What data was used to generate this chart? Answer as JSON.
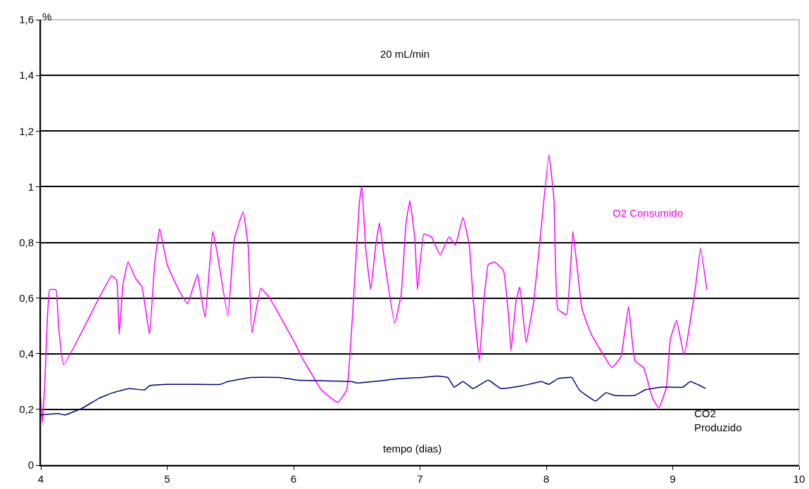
{
  "chart_data": {
    "type": "line",
    "xlabel": "tempo (dias)",
    "ylabel": "%",
    "annotations": [
      "20 mL/min"
    ],
    "xlim": [
      4,
      10
    ],
    "xticks": [
      4,
      5,
      6,
      7,
      8,
      9,
      10
    ],
    "ylim": [
      0,
      1.6
    ],
    "yticks": [
      0,
      {
        "value": 0.2,
        "label": "0,2"
      },
      {
        "value": 0.4,
        "label": "0,4"
      },
      {
        "value": 0.6,
        "label": "0,6"
      },
      {
        "value": 0.8,
        "label": "0,8"
      },
      1,
      {
        "value": 1.2,
        "label": "1,2"
      },
      {
        "value": 1.4,
        "label": "1,4"
      },
      {
        "value": 1.6,
        "label": "1,6"
      }
    ],
    "grid": "y",
    "legend": false,
    "marker": "none",
    "line_style": "solid",
    "series": [
      {
        "name": "O2 Consumido",
        "color": "#ff00ff",
        "x": [
          4.0,
          4.01,
          4.03,
          4.05,
          4.07,
          4.12,
          4.14,
          4.18,
          4.46,
          4.56,
          4.6,
          4.62,
          4.65,
          4.69,
          4.75,
          4.8,
          4.86,
          4.9,
          4.94,
          5.0,
          5.09,
          5.16,
          5.24,
          5.26,
          5.3,
          5.36,
          5.4,
          5.48,
          5.53,
          5.6,
          5.64,
          5.67,
          5.74,
          5.81,
          6.02,
          6.05,
          6.22,
          6.35,
          6.42,
          6.48,
          6.52,
          6.54,
          6.57,
          6.61,
          6.65,
          6.68,
          6.72,
          6.8,
          6.85,
          6.89,
          6.92,
          6.96,
          6.98,
          7.03,
          7.09,
          7.16,
          7.23,
          7.28,
          7.34,
          7.39,
          7.42,
          7.47,
          7.5,
          7.54,
          7.59,
          7.66,
          7.7,
          7.72,
          7.76,
          7.79,
          7.84,
          7.9,
          7.95,
          8.02,
          8.06,
          8.09,
          8.16,
          8.21,
          8.28,
          8.35,
          8.52,
          8.59,
          8.65,
          8.7,
          8.77,
          8.84,
          8.89,
          8.95,
          8.98,
          9.03,
          9.09,
          9.18,
          9.22,
          9.27
        ],
        "values": [
          0.24,
          0.15,
          0.28,
          0.51,
          0.63,
          0.63,
          0.5,
          0.36,
          0.6,
          0.68,
          0.665,
          0.47,
          0.65,
          0.73,
          0.67,
          0.64,
          0.47,
          0.72,
          0.85,
          0.72,
          0.63,
          0.58,
          0.685,
          0.63,
          0.53,
          0.84,
          0.75,
          0.535,
          0.81,
          0.91,
          0.79,
          0.475,
          0.635,
          0.6,
          0.43,
          0.4,
          0.27,
          0.225,
          0.27,
          0.64,
          0.94,
          1.005,
          0.78,
          0.63,
          0.79,
          0.87,
          0.73,
          0.51,
          0.61,
          0.87,
          0.95,
          0.81,
          0.63,
          0.83,
          0.82,
          0.755,
          0.82,
          0.79,
          0.89,
          0.79,
          0.6,
          0.375,
          0.56,
          0.72,
          0.73,
          0.7,
          0.54,
          0.41,
          0.59,
          0.64,
          0.44,
          0.59,
          0.81,
          1.115,
          0.955,
          0.56,
          0.54,
          0.84,
          0.565,
          0.475,
          0.35,
          0.39,
          0.57,
          0.375,
          0.35,
          0.24,
          0.205,
          0.28,
          0.45,
          0.52,
          0.395,
          0.64,
          0.78,
          0.63
        ]
      },
      {
        "name": "CO2 Produzido",
        "color": "#000080",
        "x": [
          4.0,
          4.14,
          4.19,
          4.33,
          4.46,
          4.57,
          4.7,
          4.82,
          4.86,
          5.0,
          5.2,
          5.42,
          5.48,
          5.66,
          5.89,
          6.03,
          6.46,
          6.5,
          6.83,
          7.02,
          7.14,
          7.22,
          7.27,
          7.34,
          7.42,
          7.54,
          7.64,
          7.81,
          7.96,
          8.02,
          8.09,
          8.2,
          8.26,
          8.39,
          8.47,
          8.54,
          8.7,
          8.78,
          8.91,
          9.08,
          9.14,
          9.26
        ],
        "values": [
          0.18,
          0.185,
          0.18,
          0.205,
          0.24,
          0.26,
          0.275,
          0.27,
          0.285,
          0.29,
          0.29,
          0.29,
          0.3,
          0.315,
          0.315,
          0.305,
          0.3,
          0.295,
          0.31,
          0.315,
          0.32,
          0.315,
          0.28,
          0.3,
          0.275,
          0.305,
          0.275,
          0.285,
          0.3,
          0.29,
          0.31,
          0.315,
          0.27,
          0.23,
          0.26,
          0.25,
          0.25,
          0.27,
          0.28,
          0.28,
          0.3,
          0.275
        ]
      }
    ]
  }
}
